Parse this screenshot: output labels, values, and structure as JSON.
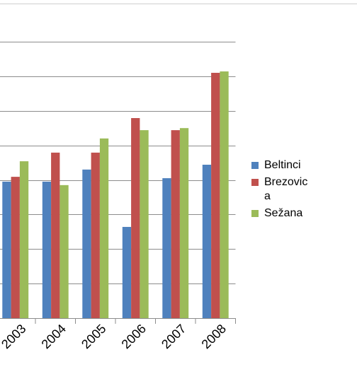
{
  "chart_data": {
    "type": "bar",
    "categories": [
      "2003",
      "2004",
      "2005",
      "2006",
      "2007",
      "2008"
    ],
    "series": [
      {
        "name": "Beltinci",
        "color": "#4f81bd",
        "values": [
          3.95,
          3.95,
          4.3,
          2.64,
          4.05,
          4.44
        ]
      },
      {
        "name": "Brezovica",
        "color": "#c0504d",
        "values": [
          4.09,
          4.79,
          4.79,
          5.79,
          5.44,
          7.1
        ]
      },
      {
        "name": "Sežana",
        "color": "#9bbb59",
        "values": [
          4.54,
          3.85,
          5.2,
          5.44,
          5.5,
          7.14
        ]
      }
    ],
    "ylim": [
      0,
      8
    ],
    "yticks": [
      0,
      1,
      2,
      3,
      4,
      5,
      6,
      7,
      8
    ],
    "grid": true,
    "legend": "right"
  }
}
